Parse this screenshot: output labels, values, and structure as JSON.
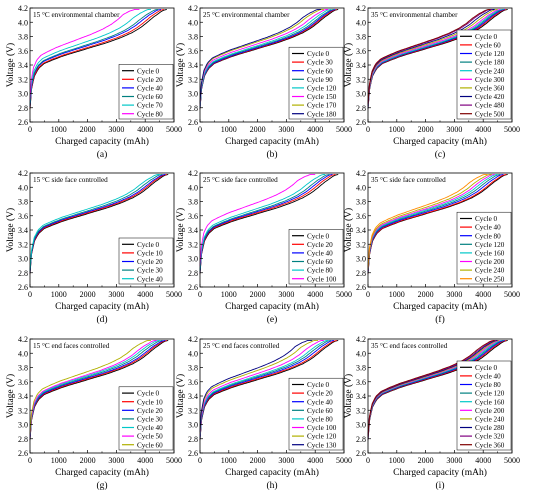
{
  "shared": {
    "xlabel": "Charged capacity (mAh)",
    "ylabel": "Voltage (V)",
    "xlim": [
      0,
      5000
    ],
    "ylim": [
      2.6,
      4.2
    ],
    "xticks": [
      0,
      1000,
      2000,
      3000,
      4000,
      5000
    ],
    "yticks": [
      2.6,
      2.8,
      3.0,
      3.2,
      3.4,
      3.6,
      3.8,
      4.0,
      4.2
    ],
    "curve_shape": {
      "capacity_mAh": [
        0,
        50,
        150,
        300,
        500,
        800,
        1200,
        1700,
        2200,
        2700,
        3200,
        3600,
        3900,
        4100,
        4250,
        4400,
        4550,
        4650,
        4750,
        4850
      ],
      "voltage_V": [
        2.78,
        3.05,
        3.24,
        3.35,
        3.42,
        3.47,
        3.53,
        3.59,
        3.65,
        3.71,
        3.78,
        3.85,
        3.92,
        3.98,
        4.03,
        4.08,
        4.12,
        4.15,
        4.17,
        4.18
      ]
    }
  },
  "chart_data": [
    {
      "type": "line",
      "panel": "(a)",
      "title": "15 °C environmental chamber",
      "xlabel": "Charged capacity (mAh)",
      "ylabel": "Voltage (V)",
      "xlim": [
        0,
        5000
      ],
      "ylim": [
        2.6,
        4.2
      ],
      "series": [
        {
          "name": "Cycle 0",
          "color": "#000000",
          "end_capacity_mAh": 4750,
          "voltage_offset_V": 0.0
        },
        {
          "name": "Cycle 20",
          "color": "#ff0000",
          "end_capacity_mAh": 4650,
          "voltage_offset_V": 0.01
        },
        {
          "name": "Cycle 40",
          "color": "#0000ff",
          "end_capacity_mAh": 4550,
          "voltage_offset_V": 0.03
        },
        {
          "name": "Cycle 60",
          "color": "#008080",
          "end_capacity_mAh": 4450,
          "voltage_offset_V": 0.04
        },
        {
          "name": "Cycle 70",
          "color": "#00c8c8",
          "end_capacity_mAh": 4200,
          "voltage_offset_V": 0.07
        },
        {
          "name": "Cycle 80",
          "color": "#ff00ff",
          "end_capacity_mAh": 3800,
          "voltage_offset_V": 0.12
        }
      ]
    },
    {
      "type": "line",
      "panel": "(b)",
      "title": "25 °C environmental chamber",
      "xlabel": "Charged capacity (mAh)",
      "ylabel": "Voltage (V)",
      "xlim": [
        0,
        5000
      ],
      "ylim": [
        2.6,
        4.2
      ],
      "series": [
        {
          "name": "Cycle 0",
          "color": "#000000",
          "end_capacity_mAh": 4800,
          "voltage_offset_V": 0.0
        },
        {
          "name": "Cycle 30",
          "color": "#ff0000",
          "end_capacity_mAh": 4750,
          "voltage_offset_V": 0.005
        },
        {
          "name": "Cycle 60",
          "color": "#0000ff",
          "end_capacity_mAh": 4700,
          "voltage_offset_V": 0.01
        },
        {
          "name": "Cycle 90",
          "color": "#008080",
          "end_capacity_mAh": 4650,
          "voltage_offset_V": 0.02
        },
        {
          "name": "Cycle 120",
          "color": "#00c8c8",
          "end_capacity_mAh": 4550,
          "voltage_offset_V": 0.03
        },
        {
          "name": "Cycle 150",
          "color": "#ff00ff",
          "end_capacity_mAh": 4450,
          "voltage_offset_V": 0.05
        },
        {
          "name": "Cycle 170",
          "color": "#b0b000",
          "end_capacity_mAh": 4300,
          "voltage_offset_V": 0.07
        },
        {
          "name": "Cycle 180",
          "color": "#000080",
          "end_capacity_mAh": 4200,
          "voltage_offset_V": 0.08
        }
      ]
    },
    {
      "type": "line",
      "panel": "(c)",
      "title": "35 °C environmental chamber",
      "xlabel": "Charged capacity (mAh)",
      "ylabel": "Voltage (V)",
      "xlim": [
        0,
        5000
      ],
      "ylim": [
        2.6,
        4.2
      ],
      "series": [
        {
          "name": "Cycle 0",
          "color": "#000000",
          "end_capacity_mAh": 4850,
          "voltage_offset_V": 0.0
        },
        {
          "name": "Cycle 60",
          "color": "#ff0000",
          "end_capacity_mAh": 4800,
          "voltage_offset_V": 0.005
        },
        {
          "name": "Cycle 120",
          "color": "#0000ff",
          "end_capacity_mAh": 4750,
          "voltage_offset_V": 0.01
        },
        {
          "name": "Cycle 180",
          "color": "#008080",
          "end_capacity_mAh": 4700,
          "voltage_offset_V": 0.015
        },
        {
          "name": "Cycle 240",
          "color": "#00c8c8",
          "end_capacity_mAh": 4650,
          "voltage_offset_V": 0.02
        },
        {
          "name": "Cycle 300",
          "color": "#ff00ff",
          "end_capacity_mAh": 4600,
          "voltage_offset_V": 0.03
        },
        {
          "name": "Cycle 360",
          "color": "#b0b000",
          "end_capacity_mAh": 4500,
          "voltage_offset_V": 0.04
        },
        {
          "name": "Cycle 420",
          "color": "#000080",
          "end_capacity_mAh": 4400,
          "voltage_offset_V": 0.05
        },
        {
          "name": "Cycle 480",
          "color": "#800080",
          "end_capacity_mAh": 4300,
          "voltage_offset_V": 0.06
        },
        {
          "name": "Cycle 500",
          "color": "#800000",
          "end_capacity_mAh": 4250,
          "voltage_offset_V": 0.065
        }
      ]
    },
    {
      "type": "line",
      "panel": "(d)",
      "title": "15 °C side face controlled",
      "xlabel": "Charged capacity (mAh)",
      "ylabel": "Voltage (V)",
      "xlim": [
        0,
        5000
      ],
      "ylim": [
        2.6,
        4.2
      ],
      "series": [
        {
          "name": "Cycle 0",
          "color": "#000000",
          "end_capacity_mAh": 4800,
          "voltage_offset_V": 0.0
        },
        {
          "name": "Cycle 10",
          "color": "#ff0000",
          "end_capacity_mAh": 4750,
          "voltage_offset_V": 0.01
        },
        {
          "name": "Cycle 20",
          "color": "#0000ff",
          "end_capacity_mAh": 4700,
          "voltage_offset_V": 0.02
        },
        {
          "name": "Cycle 30",
          "color": "#008080",
          "end_capacity_mAh": 4600,
          "voltage_offset_V": 0.03
        },
        {
          "name": "Cycle 40",
          "color": "#00c8c8",
          "end_capacity_mAh": 4500,
          "voltage_offset_V": 0.05
        }
      ]
    },
    {
      "type": "line",
      "panel": "(e)",
      "title": "25 °C side face controlled",
      "xlabel": "Charged capacity (mAh)",
      "ylabel": "Voltage (V)",
      "xlim": [
        0,
        5000
      ],
      "ylim": [
        2.6,
        4.2
      ],
      "series": [
        {
          "name": "Cycle 0",
          "color": "#000000",
          "end_capacity_mAh": 4800,
          "voltage_offset_V": 0.0
        },
        {
          "name": "Cycle 20",
          "color": "#ff0000",
          "end_capacity_mAh": 4700,
          "voltage_offset_V": 0.01
        },
        {
          "name": "Cycle 40",
          "color": "#0000ff",
          "end_capacity_mAh": 4600,
          "voltage_offset_V": 0.02
        },
        {
          "name": "Cycle 60",
          "color": "#008080",
          "end_capacity_mAh": 4500,
          "voltage_offset_V": 0.03
        },
        {
          "name": "Cycle 80",
          "color": "#00c8c8",
          "end_capacity_mAh": 4350,
          "voltage_offset_V": 0.05
        },
        {
          "name": "Cycle 100",
          "color": "#ff00ff",
          "end_capacity_mAh": 4000,
          "voltage_offset_V": 0.11
        }
      ]
    },
    {
      "type": "line",
      "panel": "(f)",
      "title": "35 °C side face controlled",
      "xlabel": "Charged capacity (mAh)",
      "ylabel": "Voltage (V)",
      "xlim": [
        0,
        5000
      ],
      "ylim": [
        2.6,
        4.2
      ],
      "series": [
        {
          "name": "Cycle 0",
          "color": "#000000",
          "end_capacity_mAh": 4850,
          "voltage_offset_V": 0.0
        },
        {
          "name": "Cycle 40",
          "color": "#ff0000",
          "end_capacity_mAh": 4800,
          "voltage_offset_V": 0.005
        },
        {
          "name": "Cycle 80",
          "color": "#0000ff",
          "end_capacity_mAh": 4700,
          "voltage_offset_V": 0.015
        },
        {
          "name": "Cycle 120",
          "color": "#008080",
          "end_capacity_mAh": 4600,
          "voltage_offset_V": 0.025
        },
        {
          "name": "Cycle 160",
          "color": "#00c8c8",
          "end_capacity_mAh": 4500,
          "voltage_offset_V": 0.035
        },
        {
          "name": "Cycle 200",
          "color": "#ff00ff",
          "end_capacity_mAh": 4400,
          "voltage_offset_V": 0.045
        },
        {
          "name": "Cycle 240",
          "color": "#b0b000",
          "end_capacity_mAh": 4300,
          "voltage_offset_V": 0.06
        },
        {
          "name": "Cycle 250",
          "color": "#ff8c00",
          "end_capacity_mAh": 4150,
          "voltage_offset_V": 0.08
        }
      ]
    },
    {
      "type": "line",
      "panel": "(g)",
      "title": "15 °C end faces controlled",
      "xlabel": "Charged capacity (mAh)",
      "ylabel": "Voltage (V)",
      "xlim": [
        0,
        5000
      ],
      "ylim": [
        2.6,
        4.2
      ],
      "series": [
        {
          "name": "Cycle 0",
          "color": "#000000",
          "end_capacity_mAh": 4800,
          "voltage_offset_V": 0.0
        },
        {
          "name": "Cycle 10",
          "color": "#ff0000",
          "end_capacity_mAh": 4750,
          "voltage_offset_V": 0.01
        },
        {
          "name": "Cycle 20",
          "color": "#0000ff",
          "end_capacity_mAh": 4700,
          "voltage_offset_V": 0.02
        },
        {
          "name": "Cycle 30",
          "color": "#008080",
          "end_capacity_mAh": 4600,
          "voltage_offset_V": 0.03
        },
        {
          "name": "Cycle 40",
          "color": "#00c8c8",
          "end_capacity_mAh": 4500,
          "voltage_offset_V": 0.04
        },
        {
          "name": "Cycle 50",
          "color": "#ff00ff",
          "end_capacity_mAh": 4400,
          "voltage_offset_V": 0.05
        },
        {
          "name": "Cycle 60",
          "color": "#b0b000",
          "end_capacity_mAh": 4200,
          "voltage_offset_V": 0.08
        }
      ]
    },
    {
      "type": "line",
      "panel": "(h)",
      "title": "25 °C end faces controlled",
      "xlabel": "Charged capacity (mAh)",
      "ylabel": "Voltage (V)",
      "xlim": [
        0,
        5000
      ],
      "ylim": [
        2.6,
        4.2
      ],
      "series": [
        {
          "name": "Cycle 0",
          "color": "#000000",
          "end_capacity_mAh": 4800,
          "voltage_offset_V": 0.0
        },
        {
          "name": "Cycle 20",
          "color": "#ff0000",
          "end_capacity_mAh": 4750,
          "voltage_offset_V": 0.01
        },
        {
          "name": "Cycle 40",
          "color": "#0000ff",
          "end_capacity_mAh": 4650,
          "voltage_offset_V": 0.02
        },
        {
          "name": "Cycle 60",
          "color": "#008080",
          "end_capacity_mAh": 4550,
          "voltage_offset_V": 0.03
        },
        {
          "name": "Cycle 80",
          "color": "#00c8c8",
          "end_capacity_mAh": 4450,
          "voltage_offset_V": 0.04
        },
        {
          "name": "Cycle 100",
          "color": "#ff00ff",
          "end_capacity_mAh": 4300,
          "voltage_offset_V": 0.06
        },
        {
          "name": "Cycle 120",
          "color": "#b0b000",
          "end_capacity_mAh": 4100,
          "voltage_offset_V": 0.09
        },
        {
          "name": "Cycle 130",
          "color": "#000080",
          "end_capacity_mAh": 3900,
          "voltage_offset_V": 0.11
        }
      ]
    },
    {
      "type": "line",
      "panel": "(i)",
      "title": "35 °C end faces controlled",
      "xlabel": "Charged capacity (mAh)",
      "ylabel": "Voltage (V)",
      "xlim": [
        0,
        5000
      ],
      "ylim": [
        2.6,
        4.2
      ],
      "series": [
        {
          "name": "Cycle 0",
          "color": "#000000",
          "end_capacity_mAh": 4850,
          "voltage_offset_V": 0.0
        },
        {
          "name": "Cycle 40",
          "color": "#ff0000",
          "end_capacity_mAh": 4800,
          "voltage_offset_V": 0.005
        },
        {
          "name": "Cycle 80",
          "color": "#0000ff",
          "end_capacity_mAh": 4750,
          "voltage_offset_V": 0.01
        },
        {
          "name": "Cycle 120",
          "color": "#008080",
          "end_capacity_mAh": 4700,
          "voltage_offset_V": 0.015
        },
        {
          "name": "Cycle 160",
          "color": "#00c8c8",
          "end_capacity_mAh": 4650,
          "voltage_offset_V": 0.02
        },
        {
          "name": "Cycle 200",
          "color": "#ff00ff",
          "end_capacity_mAh": 4600,
          "voltage_offset_V": 0.025
        },
        {
          "name": "Cycle 240",
          "color": "#b0b000",
          "end_capacity_mAh": 4550,
          "voltage_offset_V": 0.03
        },
        {
          "name": "Cycle 280",
          "color": "#000080",
          "end_capacity_mAh": 4500,
          "voltage_offset_V": 0.035
        },
        {
          "name": "Cycle 320",
          "color": "#800080",
          "end_capacity_mAh": 4450,
          "voltage_offset_V": 0.04
        },
        {
          "name": "Cycle 360",
          "color": "#800000",
          "end_capacity_mAh": 4400,
          "voltage_offset_V": 0.045
        }
      ]
    }
  ]
}
